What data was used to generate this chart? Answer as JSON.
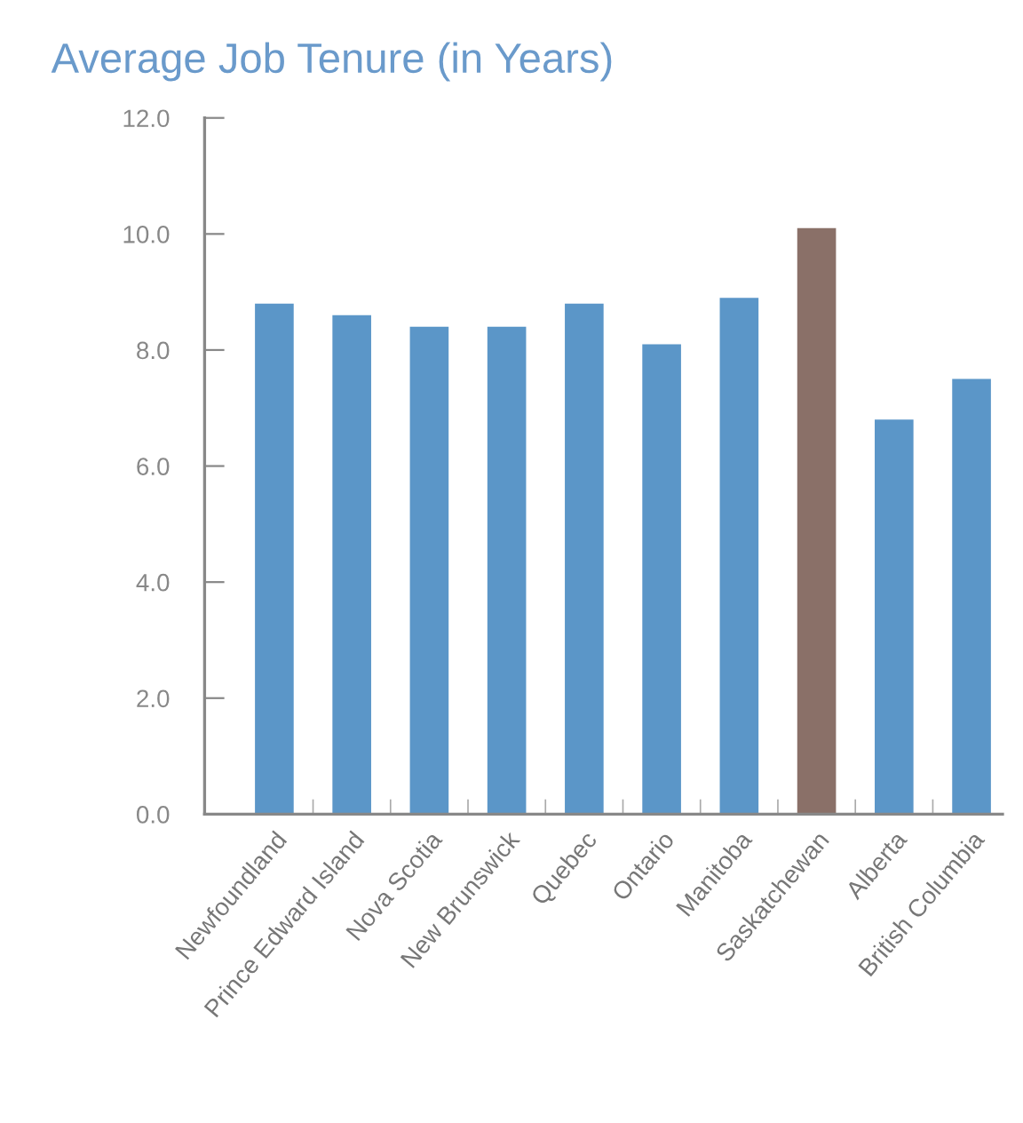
{
  "chart_data": {
    "type": "bar",
    "title": "Average Job Tenure (in Years)",
    "categories": [
      "Newfoundland",
      "Prince Edward Island",
      "Nova Scotia",
      "New Brunswick",
      "Quebec",
      "Ontario",
      "Manitoba",
      "Saskatchewan",
      "Alberta",
      "British Columbia"
    ],
    "values": [
      8.8,
      8.6,
      8.4,
      8.4,
      8.8,
      8.1,
      8.9,
      10.1,
      6.8,
      7.5
    ],
    "colors": [
      "#5b96c8",
      "#5b96c8",
      "#5b96c8",
      "#5b96c8",
      "#5b96c8",
      "#5b96c8",
      "#5b96c8",
      "#8a7068",
      "#5b96c8",
      "#5b96c8"
    ],
    "ylim": [
      0,
      12
    ],
    "yticks": [
      {
        "value": 0,
        "label": "0.0"
      },
      {
        "value": 2,
        "label": "2.0"
      },
      {
        "value": 4,
        "label": "4.0"
      },
      {
        "value": 6,
        "label": "6.0"
      },
      {
        "value": 8,
        "label": "8.0"
      },
      {
        "value": 10,
        "label": "10.0"
      },
      {
        "value": 12,
        "label": "12.0"
      }
    ],
    "grid": false,
    "legend": false
  }
}
